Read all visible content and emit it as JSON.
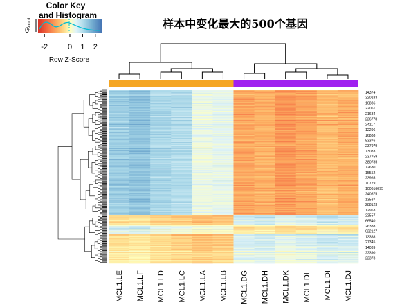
{
  "chart_data": {
    "type": "heatmap",
    "title": "样本中变化最大的500个基因",
    "columns": [
      "MCL1.LE",
      "MCL1.LF",
      "MCL1.LD",
      "MCL1.LC",
      "MCL1.LA",
      "MCL1.LB",
      "MCL1.DG",
      "MCL1.DH",
      "MCL1.DK",
      "MCL1.DL",
      "MCL1.DI",
      "MCL1.DJ"
    ],
    "column_groups": [
      {
        "samples": [
          "MCL1.LE",
          "MCL1.LF",
          "MCL1.LD",
          "MCL1.LC",
          "MCL1.LA",
          "MCL1.LB"
        ],
        "color": "#f5a623"
      },
      {
        "samples": [
          "MCL1.DG",
          "MCL1.DH",
          "MCL1.DK",
          "MCL1.DL",
          "MCL1.DI",
          "MCL1.DJ"
        ],
        "color": "#a020f0"
      }
    ],
    "row_labels": [
      "14374",
      "320183",
      "16836",
      "22061",
      "21684",
      "226778",
      "24117",
      "12296",
      "16888",
      "53376",
      "237979",
      "73083",
      "237759",
      "380785",
      "72630",
      "15552",
      "23965",
      "70779",
      "100616095",
      "240875",
      "13587",
      "288123",
      "12963",
      "22557",
      "66540",
      "26388",
      "622127",
      "13388",
      "27345",
      "14039",
      "22390",
      "22373"
    ],
    "row_count": 500,
    "color_key": {
      "title": "Color Key\nand Histogram",
      "xlabel": "Row Z-Score",
      "ylabel": "Count",
      "y_tick": "0",
      "ticks": [
        "-2",
        "0",
        "1",
        "2"
      ],
      "range": [
        -2.5,
        2.5
      ],
      "colors": [
        "#d73027",
        "#f46d43",
        "#fdae61",
        "#fee090",
        "#ffffbf",
        "#e0f3f8",
        "#abd9e9",
        "#74add1",
        "#4575b4"
      ]
    }
  }
}
